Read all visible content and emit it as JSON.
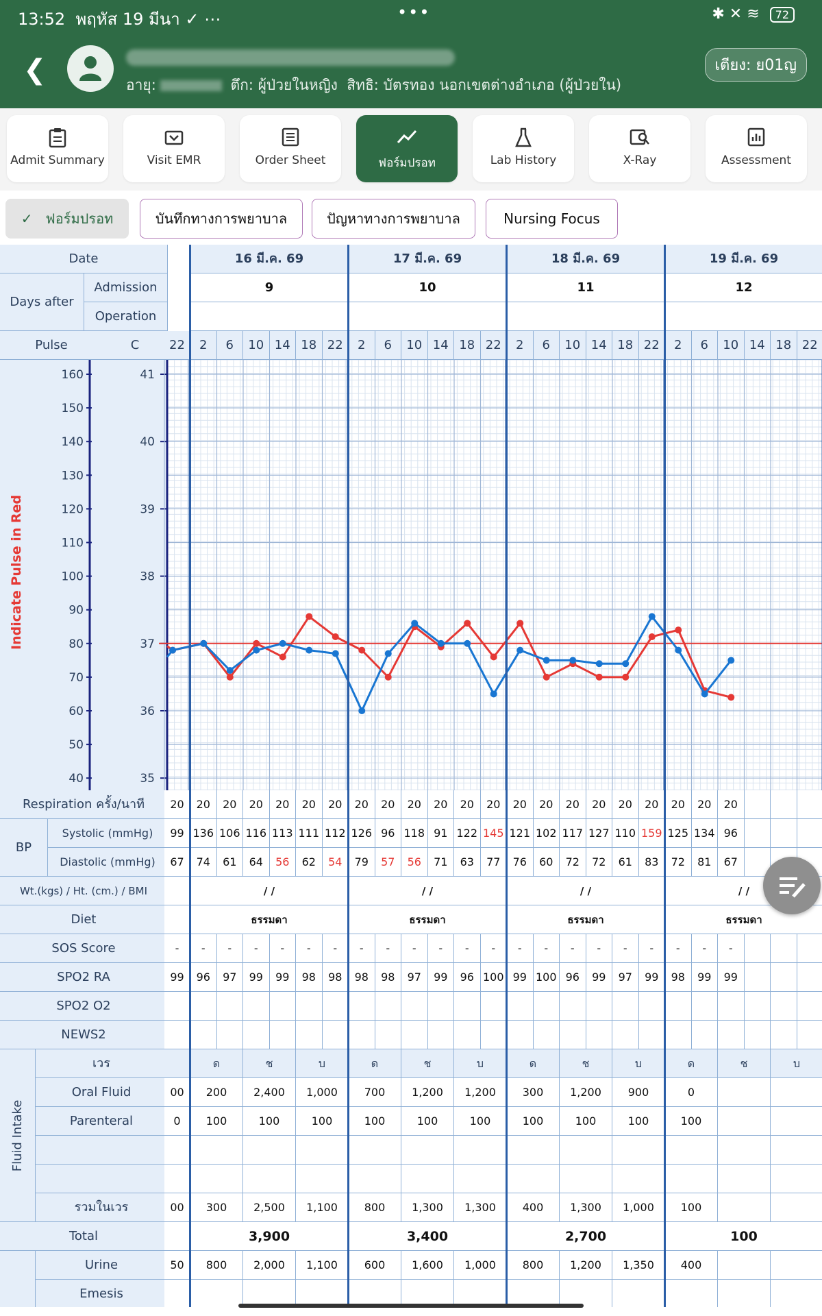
{
  "status": {
    "time": "13:52",
    "date": "พฤหัส 19 มีนา",
    "battery": "72"
  },
  "header": {
    "age_label": "อายุ:",
    "ward": "ตึก: ผู้ป่วยในหญิง",
    "right": "สิทธิ: บัตรทอง นอกเขตต่างอำเภอ (ผู้ป่วยใน)",
    "bed": "เตียง: ย01ญ"
  },
  "nav": [
    {
      "label": "Admit Summary",
      "icon": "clipboard-icon"
    },
    {
      "label": "Visit EMR",
      "icon": "doctor-icon"
    },
    {
      "label": "Order Sheet",
      "icon": "list-icon"
    },
    {
      "label": "ฟอร์มปรอท",
      "icon": "trend-icon",
      "active": true
    },
    {
      "label": "Lab History",
      "icon": "flask-icon"
    },
    {
      "label": "X-Ray",
      "icon": "image-search-icon"
    },
    {
      "label": "Assessment",
      "icon": "bar-chart-icon"
    }
  ],
  "chips": [
    {
      "label": "ฟอร์มปรอท",
      "selected": true
    },
    {
      "label": "บันทึกทางการพยาบาล",
      "selected": false
    },
    {
      "label": "ปัญหาทางการพยาบาล",
      "selected": false
    },
    {
      "label": "Nursing Focus",
      "selected": false
    }
  ],
  "labels": {
    "date": "Date",
    "days_after": "Days after",
    "admission": "Admission",
    "operation": "Operation",
    "pulse": "Pulse",
    "c": "C",
    "red_note": "Indicate Pulse in Red",
    "respiration": "Respiration ครั้ง/นาที",
    "bp": "BP",
    "systolic": "Systolic (mmHg)",
    "diastolic": "Diastolic (mmHg)",
    "wt": "Wt.(kgs) / Ht. (cm.) / BMI",
    "diet": "Diet",
    "sos": "SOS Score",
    "spo2ra": "SPO2 RA",
    "spo2o2": "SPO2 O2",
    "news2": "NEWS2",
    "fluid_intake": "Fluid Intake",
    "shift": "เวร",
    "oral": "Oral Fluid",
    "parenteral": "Parenteral",
    "sum_shift": "รวมในเวร",
    "total": "Total",
    "urine": "Urine",
    "emesis": "Emesis"
  },
  "days": [
    {
      "date": "16 มี.ค. 69",
      "admission": "9",
      "wt": "/ /",
      "diet": "ธรรมดา",
      "total": "3,900"
    },
    {
      "date": "17 มี.ค. 69",
      "admission": "10",
      "wt": "/ /",
      "diet": "ธรรมดา",
      "total": "3,400"
    },
    {
      "date": "18 มี.ค. 69",
      "admission": "11",
      "wt": "/ /",
      "diet": "ธรรมดา",
      "total": "2,700"
    },
    {
      "date": "19 มี.ค. 69",
      "admission": "12",
      "wt": "/ /",
      "diet": "ธรรมดา",
      "total": "100"
    }
  ],
  "hours": [
    "22",
    "2",
    "6",
    "10",
    "14",
    "18",
    "22",
    "2",
    "6",
    "10",
    "14",
    "18",
    "22",
    "2",
    "6",
    "10",
    "14",
    "18",
    "22",
    "2",
    "6",
    "10",
    "14",
    "18",
    "22"
  ],
  "respiration": [
    "20",
    "20",
    "20",
    "20",
    "20",
    "20",
    "20",
    "20",
    "20",
    "20",
    "20",
    "20",
    "20",
    "20",
    "20",
    "20",
    "20",
    "20",
    "20",
    "20",
    "20",
    "20",
    "",
    "",
    ""
  ],
  "systolic": [
    "99",
    "136",
    "106",
    "116",
    "113",
    "111",
    "112",
    "126",
    "96",
    "118",
    "91",
    "122",
    "145",
    "121",
    "102",
    "117",
    "127",
    "110",
    "159",
    "125",
    "134",
    "96",
    "",
    "",
    ""
  ],
  "systolic_red": [
    12,
    18
  ],
  "diastolic": [
    "67",
    "74",
    "61",
    "64",
    "56",
    "62",
    "54",
    "79",
    "57",
    "56",
    "71",
    "63",
    "77",
    "76",
    "60",
    "72",
    "72",
    "61",
    "83",
    "72",
    "81",
    "67",
    "",
    "",
    ""
  ],
  "diastolic_red": [
    4,
    6,
    8,
    9
  ],
  "sos": [
    "-",
    "-",
    "-",
    "-",
    "-",
    "-",
    "-",
    "-",
    "-",
    "-",
    "-",
    "-",
    "-",
    "-",
    "-",
    "-",
    "-",
    "-",
    "-",
    "-",
    "-",
    "-",
    "",
    "",
    ""
  ],
  "spo2ra": [
    "99",
    "96",
    "97",
    "99",
    "99",
    "98",
    "98",
    "98",
    "98",
    "97",
    "99",
    "96",
    "100",
    "99",
    "100",
    "96",
    "99",
    "97",
    "99",
    "98",
    "99",
    "99",
    "",
    "",
    ""
  ],
  "shift_names": [
    "ด",
    "ช",
    "บ"
  ],
  "oral": [
    "00",
    "200",
    "2,400",
    "1,000",
    "700",
    "1,200",
    "1,200",
    "300",
    "1,200",
    "900",
    "0",
    "",
    ""
  ],
  "parenteral": [
    "0",
    "100",
    "100",
    "100",
    "100",
    "100",
    "100",
    "100",
    "100",
    "100",
    "100",
    "",
    ""
  ],
  "sum_shift": [
    "00",
    "300",
    "2,500",
    "1,100",
    "800",
    "1,300",
    "1,300",
    "400",
    "1,300",
    "1,000",
    "100",
    "",
    ""
  ],
  "urine": [
    "50",
    "800",
    "2,000",
    "1,100",
    "600",
    "1,600",
    "1,000",
    "800",
    "1,200",
    "1,350",
    "400",
    "",
    ""
  ],
  "chart_data": {
    "type": "line",
    "x_unit": "4-hour slots",
    "pulse_axis": {
      "ticks": [
        160,
        150,
        140,
        130,
        120,
        110,
        100,
        90,
        80,
        70,
        60,
        50,
        40
      ],
      "ylim": [
        40,
        160
      ]
    },
    "temp_axis": {
      "ticks": [
        41,
        40,
        39,
        38,
        37,
        36,
        35
      ],
      "ylim": [
        35,
        41
      ]
    },
    "reference_line": {
      "temp": 37.0,
      "color": "#e53935"
    },
    "series": [
      {
        "axis": "pulse",
        "color": "#e53935",
        "x": [
          0,
          1,
          2,
          3,
          4,
          5,
          6,
          7,
          8,
          9,
          10,
          11,
          12,
          13,
          14,
          15,
          16,
          17,
          18,
          19,
          20,
          21
        ],
        "values": [
          78,
          80,
          70,
          80,
          76,
          88,
          82,
          78,
          70,
          85,
          79,
          86,
          76,
          86,
          70,
          74,
          70,
          70,
          82,
          84,
          66,
          64
        ]
      },
      {
        "axis": "temp",
        "color": "#1976d2",
        "x": [
          0,
          1,
          2,
          3,
          4,
          5,
          6,
          7,
          8,
          9,
          10,
          11,
          12,
          13,
          14,
          15,
          16,
          17,
          18,
          19,
          20,
          21
        ],
        "values": [
          36.9,
          37.0,
          36.6,
          36.9,
          37.0,
          36.9,
          36.85,
          36.0,
          36.85,
          37.3,
          37.0,
          37.0,
          36.25,
          36.9,
          36.75,
          36.75,
          36.7,
          36.7,
          37.4,
          36.9,
          36.25,
          36.75
        ]
      }
    ]
  }
}
